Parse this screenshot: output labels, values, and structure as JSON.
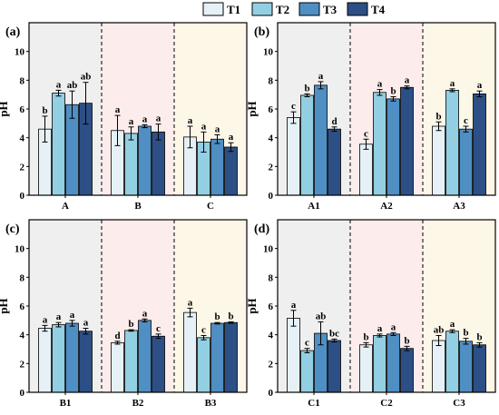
{
  "legend": [
    {
      "label": "T1",
      "color": "#e6f1f7"
    },
    {
      "label": "T2",
      "color": "#93cfe2"
    },
    {
      "label": "T3",
      "color": "#4f8fc4"
    },
    {
      "label": "T4",
      "color": "#2c4f86"
    }
  ],
  "panel_backgrounds": [
    "#efefef",
    "#fcecec",
    "#fdf7e8"
  ],
  "chart_data": [
    {
      "type": "bar",
      "panel_label": "(a)",
      "ylabel": "pH",
      "ylim": [
        0,
        12
      ],
      "yticks": [
        0,
        2,
        4,
        6,
        8,
        10
      ],
      "categories": [
        "A",
        "B",
        "C"
      ],
      "series": [
        {
          "name": "T1",
          "values": [
            4.6,
            4.5,
            4.05
          ],
          "errors": [
            0.9,
            1.05,
            0.75
          ],
          "letters": [
            "b",
            "a",
            "a"
          ]
        },
        {
          "name": "T2",
          "values": [
            7.1,
            4.3,
            3.7
          ],
          "errors": [
            0.2,
            0.45,
            0.7
          ],
          "letters": [
            "a",
            "a",
            "a"
          ]
        },
        {
          "name": "T3",
          "values": [
            6.3,
            4.8,
            3.9
          ],
          "errors": [
            0.95,
            0.1,
            0.3
          ],
          "letters": [
            "ab",
            "a",
            "a"
          ]
        },
        {
          "name": "T4",
          "values": [
            6.4,
            4.4,
            3.35
          ],
          "errors": [
            1.45,
            0.55,
            0.3
          ],
          "letters": [
            "ab",
            "a",
            "a"
          ]
        }
      ]
    },
    {
      "type": "bar",
      "panel_label": "(b)",
      "ylabel": "pH",
      "ylim": [
        0,
        12
      ],
      "yticks": [
        0,
        2,
        4,
        6,
        8,
        10
      ],
      "categories": [
        "A1",
        "A2",
        "A3"
      ],
      "series": [
        {
          "name": "T1",
          "values": [
            5.4,
            3.55,
            4.8
          ],
          "errors": [
            0.4,
            0.35,
            0.3
          ],
          "letters": [
            "c",
            "c",
            "b"
          ]
        },
        {
          "name": "T2",
          "values": [
            6.95,
            7.15,
            7.3
          ],
          "errors": [
            0.1,
            0.2,
            0.1
          ],
          "letters": [
            "b",
            "a",
            "a"
          ]
        },
        {
          "name": "T3",
          "values": [
            7.65,
            6.7,
            4.6
          ],
          "errors": [
            0.25,
            0.15,
            0.2
          ],
          "letters": [
            "a",
            "b",
            "c"
          ]
        },
        {
          "name": "T4",
          "values": [
            4.6,
            7.5,
            7.05
          ],
          "errors": [
            0.15,
            0.1,
            0.2
          ],
          "letters": [
            "d",
            "a",
            "a"
          ]
        }
      ]
    },
    {
      "type": "bar",
      "panel_label": "(c)",
      "ylabel": "pH",
      "ylim": [
        0,
        12
      ],
      "yticks": [
        0,
        2,
        4,
        6,
        8,
        10
      ],
      "categories": [
        "B1",
        "B2",
        "B3"
      ],
      "series": [
        {
          "name": "T1",
          "values": [
            4.45,
            3.45,
            5.55
          ],
          "errors": [
            0.2,
            0.1,
            0.3
          ],
          "letters": [
            "a",
            "d",
            "a"
          ]
        },
        {
          "name": "T2",
          "values": [
            4.7,
            4.3,
            3.8
          ],
          "errors": [
            0.15,
            0.05,
            0.15
          ],
          "letters": [
            "a",
            "b",
            "c"
          ]
        },
        {
          "name": "T3",
          "values": [
            4.8,
            5.0,
            4.8
          ],
          "errors": [
            0.2,
            0.1,
            0.05
          ],
          "letters": [
            "a",
            "a",
            "b"
          ]
        },
        {
          "name": "T4",
          "values": [
            4.25,
            3.9,
            4.85
          ],
          "errors": [
            0.2,
            0.15,
            0.05
          ],
          "letters": [
            "a",
            "c",
            "b"
          ]
        }
      ]
    },
    {
      "type": "bar",
      "panel_label": "(d)",
      "ylabel": "pH",
      "ylim": [
        0,
        12
      ],
      "yticks": [
        0,
        2,
        4,
        6,
        8,
        10
      ],
      "categories": [
        "C1",
        "C2",
        "C3"
      ],
      "series": [
        {
          "name": "T1",
          "values": [
            5.15,
            3.3,
            3.6
          ],
          "errors": [
            0.55,
            0.15,
            0.35
          ],
          "letters": [
            "a",
            "b",
            "ab"
          ]
        },
        {
          "name": "T2",
          "values": [
            2.9,
            3.95,
            4.25
          ],
          "errors": [
            0.15,
            0.1,
            0.1
          ],
          "letters": [
            "c",
            "a",
            "a"
          ]
        },
        {
          "name": "T3",
          "values": [
            4.1,
            4.05,
            3.55
          ],
          "errors": [
            0.8,
            0.1,
            0.2
          ],
          "letters": [
            "ab",
            "a",
            "b"
          ]
        },
        {
          "name": "T4",
          "values": [
            3.6,
            3.05,
            3.3
          ],
          "errors": [
            0.1,
            0.15,
            0.15
          ],
          "letters": [
            "bc",
            "b",
            "b"
          ]
        }
      ]
    }
  ]
}
